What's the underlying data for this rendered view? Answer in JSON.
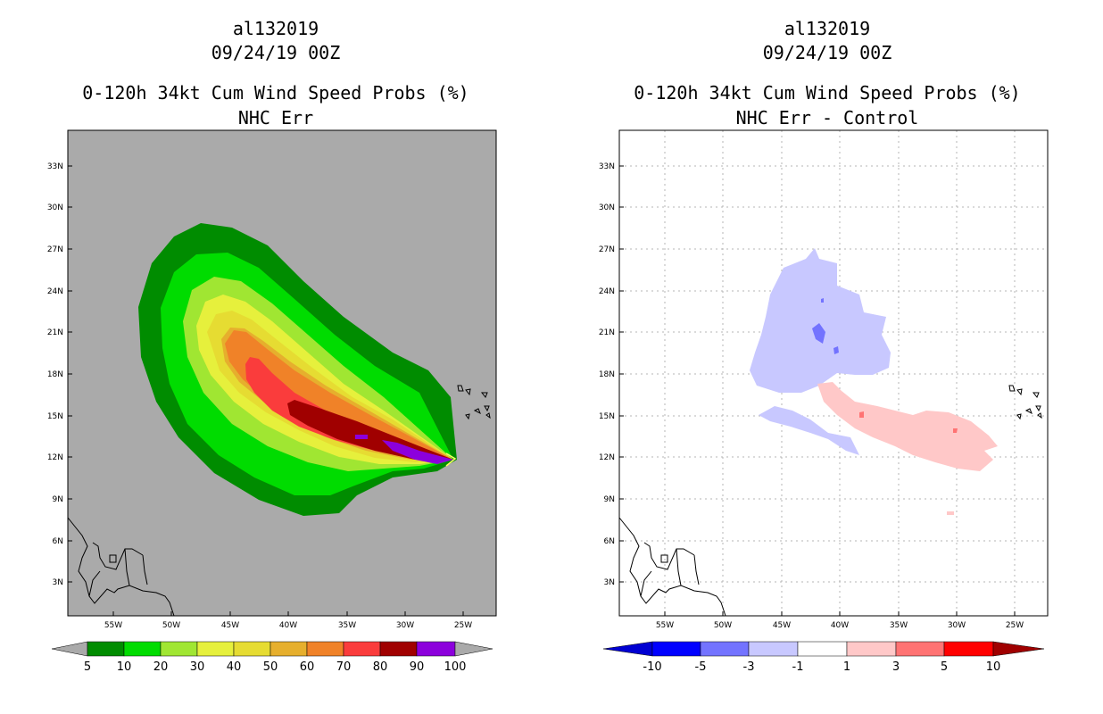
{
  "colors": {
    "background_left": "#aaaaaa",
    "prob_bins": [
      "#008c00",
      "#00dc00",
      "#a0e632",
      "#e6f03c",
      "#e6dc32",
      "#e6af2d",
      "#f08228",
      "#fa3c3c",
      "#a00000",
      "#8c00dc"
    ],
    "diff_bins": [
      "#0000d2",
      "#0000ff",
      "#7373ff",
      "#c8c8ff",
      "#ffffff",
      "#ffc8c8",
      "#ff7373",
      "#ff0000",
      "#a00000"
    ]
  },
  "panels": [
    {
      "id": "left",
      "storm": "al132019",
      "datetime": "09/24/19 00Z",
      "product": "0-120h 34kt Cum Wind Speed Probs (%)",
      "subtitle": "NHC Err",
      "lat_labels": [
        "33N",
        "30N",
        "27N",
        "24N",
        "21N",
        "18N",
        "15N",
        "12N",
        "9N",
        "6N",
        "3N"
      ],
      "lon_labels": [
        "55W",
        "50W",
        "45W",
        "40W",
        "35W",
        "30W",
        "25W"
      ],
      "colorbar_labels": [
        "5",
        "10",
        "20",
        "30",
        "40",
        "50",
        "60",
        "70",
        "80",
        "90",
        "100"
      ],
      "show_grid": false
    },
    {
      "id": "right",
      "storm": "al132019",
      "datetime": "09/24/19 00Z",
      "product": "0-120h 34kt Cum Wind Speed Probs (%)",
      "subtitle": "NHC Err - Control",
      "lat_labels": [
        "33N",
        "30N",
        "27N",
        "24N",
        "21N",
        "18N",
        "15N",
        "12N",
        "9N",
        "6N",
        "3N"
      ],
      "lon_labels": [
        "55W",
        "50W",
        "45W",
        "40W",
        "35W",
        "30W",
        "25W"
      ],
      "colorbar_labels": [
        "-10",
        "-5",
        "-3",
        "-1",
        "1",
        "3",
        "5",
        "10"
      ],
      "show_grid": true
    }
  ]
}
